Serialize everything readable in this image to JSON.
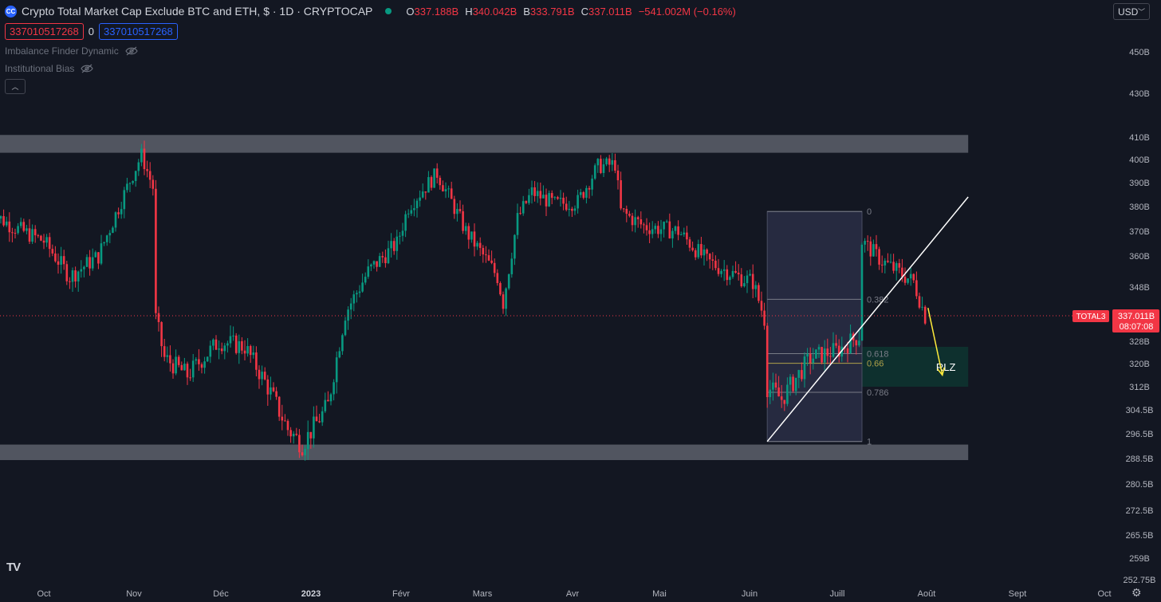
{
  "header": {
    "logo_text": "CC",
    "title": "Crypto Total Market Cap Exclude BTC and ETH, $ · 1D · CRYPTOCAP",
    "status_color": "#089981",
    "ohlc": [
      {
        "key": "O",
        "value": "337.188B"
      },
      {
        "key": "H",
        "value": "340.042B"
      },
      {
        "key": "B",
        "value": "333.791B"
      },
      {
        "key": "C",
        "value": "337.011B"
      }
    ],
    "change": "−541.002M (−0.16%)"
  },
  "badges": {
    "sell": "337010517268",
    "spread": "0",
    "buy": "337010517268"
  },
  "indicators": [
    {
      "label": "Imbalance Finder Dynamic",
      "icon": "eye-off-icon"
    },
    {
      "label": "Institutional Bias",
      "icon": "eye-off-icon"
    }
  ],
  "collapse_icon": "chevron-up-icon",
  "currency": "USD",
  "price_axis": {
    "labels": [
      "450B",
      "430B",
      "410B",
      "400B",
      "390B",
      "380B",
      "370B",
      "360B",
      "348B",
      "328B",
      "320B",
      "312B",
      "304.5B",
      "296.5B",
      "288.5B",
      "280.5B",
      "272.5B",
      "265.5B",
      "259B",
      "252.75B"
    ],
    "tag_symbol": "TOTAL3",
    "tag_price": "337.011B",
    "tag_countdown": "08:07:08"
  },
  "time_axis": {
    "labels": [
      "Oct",
      "Nov",
      "Déc",
      "2023",
      "Févr",
      "Mars",
      "Avr",
      "Mai",
      "Juin",
      "Juill",
      "Août",
      "Sept",
      "Oct"
    ]
  },
  "fib_levels": [
    {
      "label": "0",
      "ratio": 0
    },
    {
      "label": "0.382",
      "ratio": 0.382
    },
    {
      "label": "0.618",
      "ratio": 0.618
    },
    {
      "label": "0.66",
      "ratio": 0.66
    },
    {
      "label": "0.786",
      "ratio": 0.786
    },
    {
      "label": "1",
      "ratio": 1
    }
  ],
  "zone_label": "RLZ",
  "chart_data": {
    "type": "candlestick",
    "symbol": "TOTAL3",
    "timeframe": "1D",
    "x_range": [
      "2022-09-12",
      "2023-10-20"
    ],
    "price_unit": "B USD",
    "price_key_points": [
      [
        "2022-09-12",
        378
      ],
      [
        "2022-09-20",
        372
      ],
      [
        "2022-10-01",
        366
      ],
      [
        "2022-10-10",
        352
      ],
      [
        "2022-10-20",
        360
      ],
      [
        "2022-11-04",
        402
      ],
      [
        "2022-11-08",
        388
      ],
      [
        "2022-11-09",
        336
      ],
      [
        "2022-11-12",
        322
      ],
      [
        "2022-11-20",
        316
      ],
      [
        "2022-12-01",
        328
      ],
      [
        "2022-12-10",
        326
      ],
      [
        "2022-12-18",
        312
      ],
      [
        "2022-12-25",
        298
      ],
      [
        "2022-12-30",
        293
      ],
      [
        "2023-01-08",
        306
      ],
      [
        "2023-01-14",
        338
      ],
      [
        "2023-01-22",
        354
      ],
      [
        "2023-02-01",
        365
      ],
      [
        "2023-02-05",
        380
      ],
      [
        "2023-02-15",
        394
      ],
      [
        "2023-02-25",
        370
      ],
      [
        "2023-03-08",
        352
      ],
      [
        "2023-03-10",
        342
      ],
      [
        "2023-03-15",
        375
      ],
      [
        "2023-03-20",
        386
      ],
      [
        "2023-03-28",
        381
      ],
      [
        "2023-04-05",
        382
      ],
      [
        "2023-04-12",
        397
      ],
      [
        "2023-04-18",
        398
      ],
      [
        "2023-04-20",
        378
      ],
      [
        "2023-04-28",
        372
      ],
      [
        "2023-05-10",
        370
      ],
      [
        "2023-05-20",
        358
      ],
      [
        "2023-05-31",
        352
      ],
      [
        "2023-06-05",
        350
      ],
      [
        "2023-06-09",
        336
      ],
      [
        "2023-06-10",
        312
      ],
      [
        "2023-06-15",
        308
      ],
      [
        "2023-06-25",
        322
      ],
      [
        "2023-07-05",
        325
      ],
      [
        "2023-07-12",
        330
      ],
      [
        "2023-07-13",
        366
      ],
      [
        "2023-07-20",
        358
      ],
      [
        "2023-07-31",
        350
      ],
      [
        "2023-08-04",
        337.011
      ]
    ],
    "zones": [
      {
        "name": "resistance",
        "from": 403,
        "to": 411,
        "x_from": "2022-09-12",
        "x_to": "2023-08-19"
      },
      {
        "name": "support",
        "from": 288,
        "to": 293,
        "x_from": "2022-09-13",
        "x_to": "2023-08-19"
      },
      {
        "name": "RLZ",
        "from": 312,
        "to": 326,
        "x_from": "2023-07-13",
        "x_to": "2023-08-19"
      }
    ],
    "fib_retracement": {
      "from_date": "2023-06-10",
      "to_date": "2023-07-13",
      "high": 378,
      "low": 294
    },
    "trendline": {
      "from": [
        "2023-06-10",
        294
      ],
      "to": [
        "2023-08-19",
        384
      ]
    },
    "projection_arrow": {
      "from": [
        "2023-08-05",
        340
      ],
      "to": [
        "2023-08-10",
        316
      ],
      "color": "#ffeb3b"
    },
    "current_price_line": 337.011,
    "up_color": "#089981",
    "down_color": "#f23645"
  }
}
